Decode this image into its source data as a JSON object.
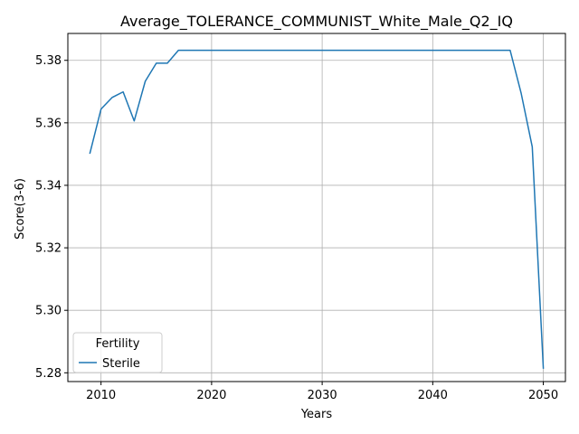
{
  "chart_data": {
    "type": "line",
    "title": "Average_TOLERANCE_COMMUNIST_White_Male_Q2_IQ",
    "xlabel": "Years",
    "ylabel": "Score(3-6)",
    "xlim": [
      2007,
      2052
    ],
    "ylim": [
      5.2772,
      5.3886
    ],
    "xticks": [
      2010,
      2020,
      2030,
      2040,
      2050
    ],
    "yticks": [
      5.28,
      5.3,
      5.32,
      5.34,
      5.36,
      5.38
    ],
    "ytick_labels": [
      "5.28",
      "5.30",
      "5.32",
      "5.34",
      "5.36",
      "5.38"
    ],
    "grid": true,
    "legend": {
      "title": "Fertility",
      "placement": "lower-left"
    },
    "series": [
      {
        "name": "Sterile",
        "color": "#1f77b4",
        "x": [
          2009,
          2010,
          2011,
          2012,
          2013,
          2014,
          2015,
          2016,
          2017,
          2018,
          2019,
          2020,
          2021,
          2022,
          2023,
          2024,
          2025,
          2026,
          2027,
          2028,
          2029,
          2030,
          2031,
          2032,
          2033,
          2034,
          2035,
          2036,
          2037,
          2038,
          2039,
          2040,
          2041,
          2042,
          2043,
          2044,
          2045,
          2046,
          2047,
          2048,
          2049,
          2050
        ],
        "y": [
          5.3503,
          5.3644,
          5.3681,
          5.3699,
          5.3606,
          5.3733,
          5.3791,
          5.3791,
          5.3832,
          5.3832,
          5.3832,
          5.3832,
          5.3832,
          5.3832,
          5.3832,
          5.3832,
          5.3832,
          5.3832,
          5.3832,
          5.3832,
          5.3832,
          5.3832,
          5.3832,
          5.3832,
          5.3832,
          5.3832,
          5.3832,
          5.3832,
          5.3832,
          5.3832,
          5.3832,
          5.3832,
          5.3832,
          5.3832,
          5.3832,
          5.3832,
          5.3832,
          5.3832,
          5.3832,
          5.3694,
          5.3523,
          5.2815
        ]
      }
    ]
  },
  "style": {
    "grid_color": "#b0b0b0",
    "axis_color": "#000000",
    "legend_border_color": "#cccccc"
  }
}
